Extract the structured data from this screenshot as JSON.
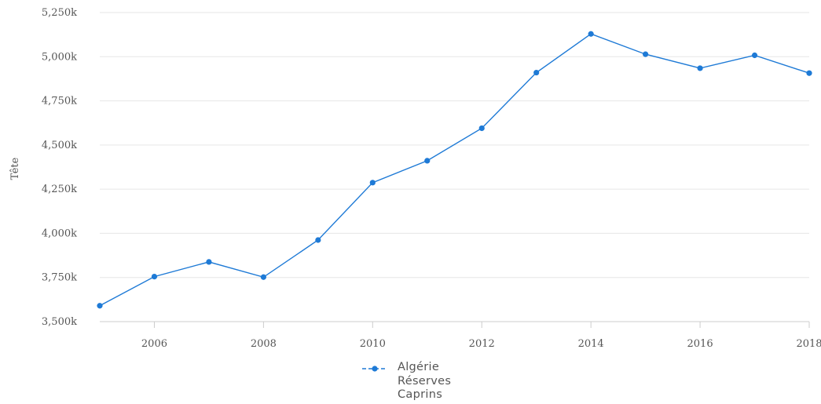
{
  "chart_data": {
    "type": "line",
    "ylabel": "Tête",
    "xlabel": "",
    "x_ticks": [
      "2006",
      "2008",
      "2010",
      "2012",
      "2014",
      "2016",
      "2018"
    ],
    "y_ticks": [
      "3,500k",
      "3,750k",
      "4,000k",
      "4,250k",
      "4,500k",
      "4,750k",
      "5,000k",
      "5,250k"
    ],
    "xlim": [
      2005,
      2018
    ],
    "ylim": [
      3500000,
      5250000
    ],
    "grid": true,
    "legend_position": "bottom-center",
    "series": [
      {
        "name_lines": [
          "Algérie",
          "Réserves",
          "Caprins"
        ],
        "color": "#1e7ad6",
        "x": [
          2005,
          2006,
          2007,
          2008,
          2009,
          2010,
          2011,
          2012,
          2013,
          2014,
          2015,
          2016,
          2017,
          2018
        ],
        "y": [
          3590000,
          3755000,
          3838000,
          3752000,
          3962000,
          4287000,
          4411000,
          4595000,
          4910000,
          5129000,
          5014000,
          4935000,
          5008000,
          4907000
        ]
      }
    ]
  }
}
